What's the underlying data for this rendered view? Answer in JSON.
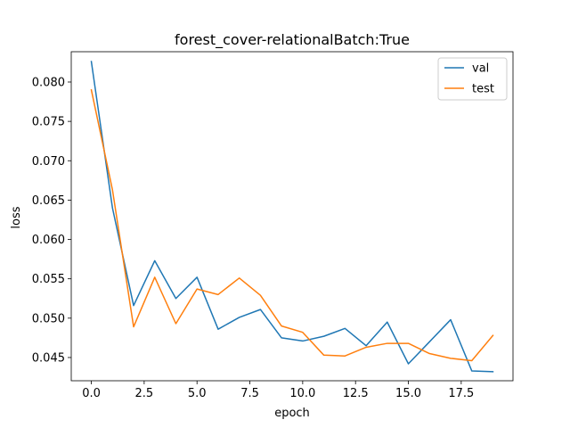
{
  "colors": {
    "val": "#1f77b4",
    "test": "#ff7f0e"
  },
  "chart_data": {
    "type": "line",
    "title": "forest_cover-relationalBatch:True",
    "xlabel": "epoch",
    "ylabel": "loss",
    "xlim": [
      -0.95,
      19.95
    ],
    "ylim": [
      0.04205,
      0.08385
    ],
    "xticks": [
      0.0,
      2.5,
      5.0,
      7.5,
      10.0,
      12.5,
      15.0,
      17.5
    ],
    "xtick_labels": [
      "0.0",
      "2.5",
      "5.0",
      "7.5",
      "10.0",
      "12.5",
      "15.0",
      "17.5"
    ],
    "yticks": [
      0.045,
      0.05,
      0.055,
      0.06,
      0.065,
      0.07,
      0.075,
      0.08
    ],
    "ytick_labels": [
      "0.045",
      "0.050",
      "0.055",
      "0.060",
      "0.065",
      "0.070",
      "0.075",
      "0.080"
    ],
    "grid": false,
    "legend_position": "top-right",
    "x": [
      0,
      1,
      2,
      3,
      4,
      5,
      6,
      7,
      8,
      9,
      10,
      11,
      12,
      13,
      14,
      15,
      16,
      17,
      18,
      19
    ],
    "series": [
      {
        "name": "val",
        "values": [
          0.0826,
          0.064,
          0.0516,
          0.0573,
          0.0525,
          0.0552,
          0.0486,
          0.0501,
          0.0511,
          0.0475,
          0.0471,
          0.0477,
          0.0487,
          0.0465,
          0.0495,
          0.0442,
          0.047,
          0.0498,
          0.0433,
          0.0432
        ]
      },
      {
        "name": "test",
        "values": [
          0.079,
          0.0663,
          0.0489,
          0.0552,
          0.0493,
          0.0537,
          0.053,
          0.0551,
          0.0529,
          0.049,
          0.0482,
          0.0453,
          0.0452,
          0.0463,
          0.0468,
          0.0468,
          0.0455,
          0.0449,
          0.0446,
          0.0478
        ]
      }
    ]
  }
}
